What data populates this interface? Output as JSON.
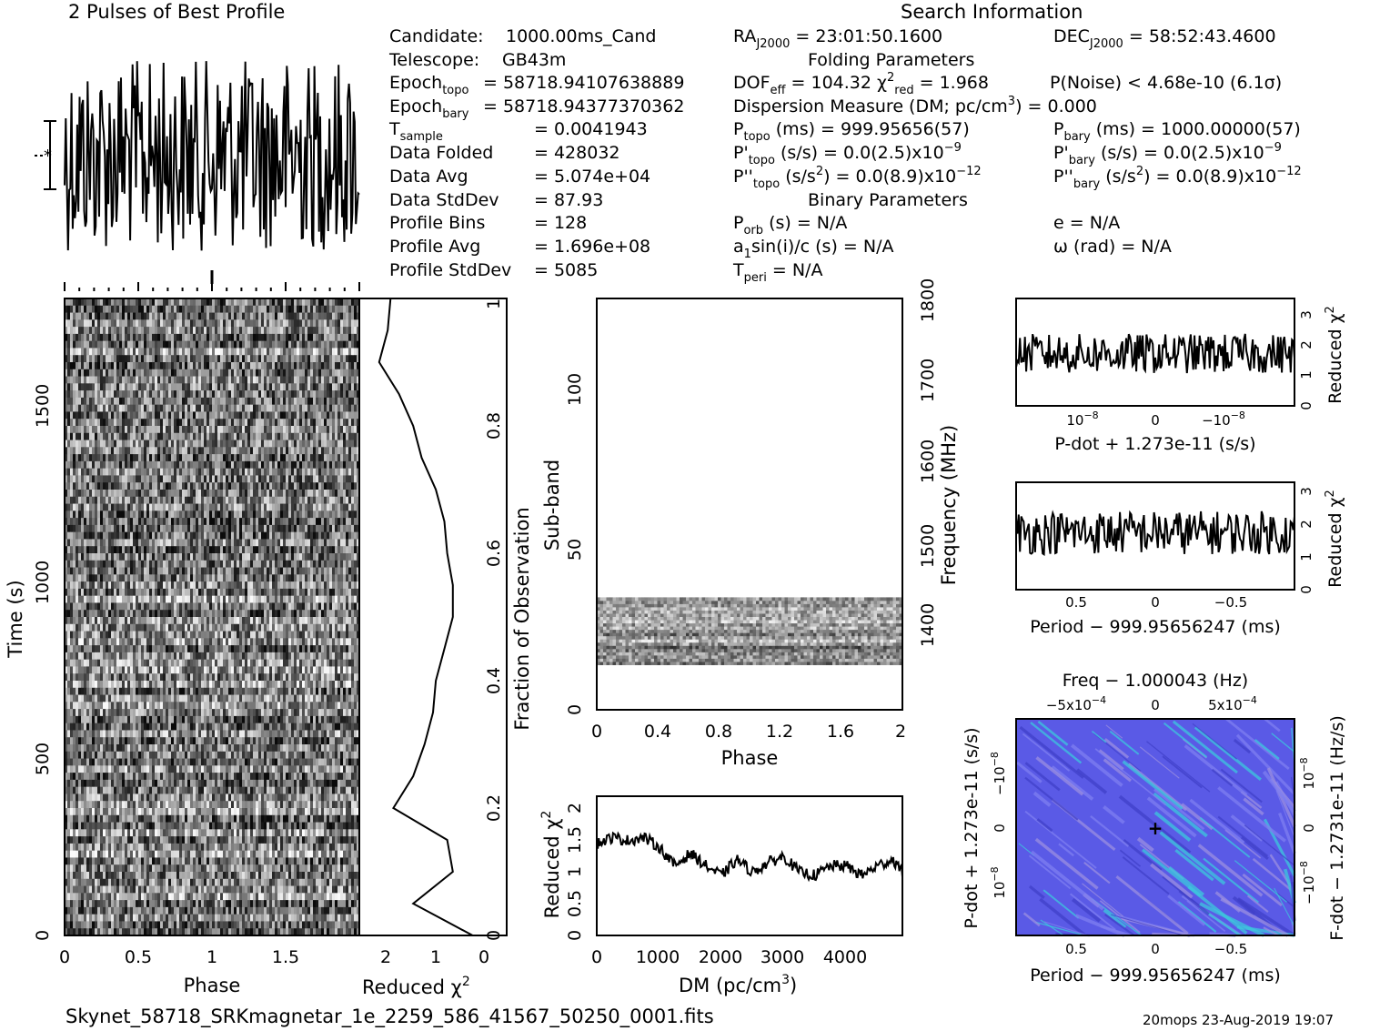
{
  "header": {
    "profile_title": "2 Pulses of Best Profile",
    "search_title": "Search Information",
    "folding_title": "Folding Parameters",
    "binary_title": "Binary Parameters"
  },
  "info_left": [
    {
      "label": "Candidate:",
      "value": "1000.00ms_Cand"
    },
    {
      "label": "Telescope:",
      "value": "GB43m"
    },
    {
      "label": "Epoch_topo",
      "value": "= 58718.94107638889"
    },
    {
      "label": "Epoch_bary",
      "value": "= 58718.94377370362"
    },
    {
      "label": "T_sample",
      "value": "=  0.0041943"
    },
    {
      "label": "Data Folded",
      "value": "=  428032"
    },
    {
      "label": "Data Avg",
      "value": "=  5.074e+04"
    },
    {
      "label": "Data StdDev",
      "value": "=  87.93"
    },
    {
      "label": "Profile Bins",
      "value": "=  128"
    },
    {
      "label": "Profile Avg",
      "value": "=  1.696e+08"
    },
    {
      "label": "Profile StdDev",
      "value": "=  5085"
    }
  ],
  "info_mid": [
    "RA_J2000 = 23:01:50.1600",
    "DOF_eff = 104.32  χ²_red = 1.968",
    "Dispersion Measure (DM; pc/cm³) = 0.000",
    "P_topo (ms) =  999.95656(57)",
    "P'_topo (s/s) = 0.0(2.5)x10⁻⁹",
    "P''_topo (s/s²) = 0.0(8.9)x10⁻¹²",
    "P_orb (s) = N/A",
    "a₁sin(i)/c (s) = N/A",
    "T_peri = N/A"
  ],
  "info_right": [
    "DEC_J2000 = 58:52:43.4600",
    "P(Noise) < 4.68e-10  (6.1σ)",
    "P_bary (ms) =  1000.00000(57)",
    "P'_bary (s/s) = 0.0(2.5)x10⁻⁹",
    "P''_bary (s/s²) = 0.0(8.9)x10⁻¹²",
    "e = N/A",
    "ω (rad) = N/A"
  ],
  "footer": {
    "filename": "Skynet_58718_SRKmagnetar_1e_2259_586_41567_50250_0001.fits",
    "stamp": "20mops 23-Aug-2019 19:07"
  },
  "chart_data": [
    {
      "type": "line",
      "title": "2 Pulses of Best Profile",
      "xlabel": "",
      "ylabel": "",
      "note": "noisy pulse profile over two rotations, no axes values printed"
    },
    {
      "type": "heatmap",
      "xlabel": "Phase",
      "ylabel": "Time (s)",
      "xticks": [
        "0",
        "0.5",
        "1",
        "1.5"
      ],
      "yticks": [
        "0",
        "500",
        "1000",
        "1500"
      ],
      "xlim": [
        0,
        2
      ],
      "ylim": [
        0,
        1800
      ],
      "colormap": "grayscale"
    },
    {
      "type": "line",
      "xlabel": "Reduced χ²",
      "ylabel": "Fraction of Observation",
      "xticks": [
        "2",
        "1",
        "0"
      ],
      "yticks": [
        "0",
        "0.2",
        "0.4",
        "0.6",
        "0.8",
        "1"
      ],
      "xlim": [
        2.6,
        0
      ],
      "ylim": [
        0,
        1
      ],
      "y": [
        0,
        0.05,
        0.1,
        0.15,
        0.2,
        0.25,
        0.3,
        0.35,
        0.4,
        0.45,
        0.5,
        0.55,
        0.6,
        0.65,
        0.7,
        0.75,
        0.8,
        0.85,
        0.9,
        0.95,
        1.0
      ],
      "x": [
        0.6,
        1.65,
        0.95,
        1.05,
        2.0,
        1.65,
        1.45,
        1.3,
        1.25,
        1.1,
        0.95,
        0.95,
        1.05,
        1.1,
        1.25,
        1.5,
        1.65,
        1.9,
        2.25,
        2.1,
        2.05
      ]
    },
    {
      "type": "heatmap",
      "xlabel": "Phase",
      "ylabel": "Sub-band",
      "y2label": "Frequency (MHz)",
      "xticks": [
        "0",
        "0.4",
        "0.8",
        "1.2",
        "1.6",
        "2"
      ],
      "yticks": [
        "0",
        "50",
        "100"
      ],
      "y2ticks": [
        "1400",
        "1500",
        "1600",
        "1700",
        "1800"
      ],
      "xlim": [
        0,
        2
      ],
      "ylim": [
        0,
        128
      ],
      "populated_subbands": [
        14,
        35
      ]
    },
    {
      "type": "line",
      "xlabel": "DM (pc/cm³)",
      "ylabel": "Reduced χ²",
      "xticks": [
        "0",
        "1000",
        "2000",
        "3000",
        "4000"
      ],
      "yticks": [
        "0",
        "0.5",
        "1",
        "1.5",
        "2"
      ],
      "xlim": [
        0,
        4900
      ],
      "ylim": [
        0,
        2.2
      ],
      "x": [
        0,
        250,
        500,
        750,
        1000,
        1250,
        1500,
        1750,
        2000,
        2250,
        2500,
        2750,
        3000,
        3250,
        3500,
        3750,
        4000,
        4250,
        4500,
        4750,
        4900
      ],
      "y": [
        1.45,
        1.55,
        1.5,
        1.55,
        1.4,
        1.1,
        1.3,
        1.1,
        0.95,
        1.2,
        1.0,
        1.15,
        1.25,
        1.0,
        0.95,
        1.1,
        1.1,
        0.95,
        1.1,
        1.2,
        1.0
      ]
    },
    {
      "type": "line",
      "xlabel": "P-dot + 1.273e-11 (s/s)",
      "ylabel": "Reduced χ²",
      "xticks": [
        "10⁻⁸",
        "0",
        "−10⁻⁸"
      ],
      "yticks": [
        "0",
        "1",
        "2",
        "3"
      ],
      "ylim": [
        0,
        3.5
      ],
      "note": "noisy trace around reduced chi-squared 1.5 to 2"
    },
    {
      "type": "line",
      "xlabel": "Period − 999.95656247 (ms)",
      "ylabel": "Reduced χ²",
      "xticks": [
        "0.5",
        "0",
        "−0.5"
      ],
      "yticks": [
        "0",
        "1",
        "2",
        "3"
      ],
      "ylim": [
        0,
        3.2
      ],
      "note": "noisy trace around reduced chi-squared 1.5 to 2"
    },
    {
      "type": "heatmap",
      "title": "Freq − 1.000043 (Hz)",
      "xlabel": "Period − 999.95656247 (ms)",
      "ylabel": "P-dot + 1.273e-11 (s/s)",
      "y2label": "F-dot − 1.2731e-11 (Hz/s)",
      "xticks": [
        "0.5",
        "0",
        "−0.5"
      ],
      "x2ticks": [
        "−5x10⁻⁴",
        "0",
        "5x10⁻⁴"
      ],
      "yticks": [
        "10⁻⁸",
        "0",
        "−10⁻⁸"
      ],
      "y2ticks": [
        "10⁻⁸",
        "0",
        "−10⁻⁸"
      ],
      "colormap": "blue-purple with cyan diagonal streaks",
      "best_marker": "+"
    }
  ],
  "colors": {
    "ppdot_base": "#5a5ae6",
    "ppdot_cyan": "#3cc8dc",
    "ppdot_light": "#9b8fe0"
  }
}
